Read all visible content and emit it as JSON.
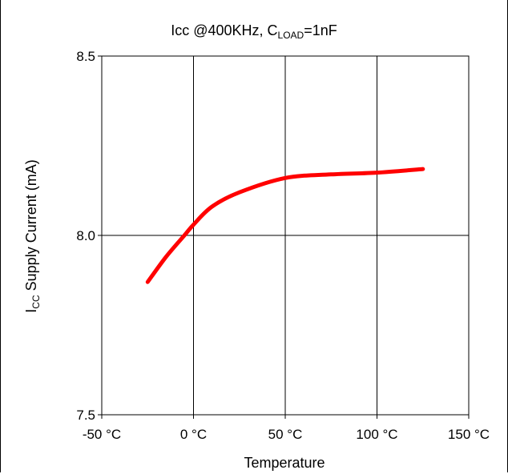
{
  "chart_data": {
    "type": "line",
    "title": {
      "prefix": "Icc @400KHz, C",
      "subscript": "LOAD",
      "suffix": "=1nF"
    },
    "xlabel": "Temperature",
    "ylabel": {
      "prefix": "I",
      "subscript": "CC",
      "suffix": " Supply Current (mA)"
    },
    "xlim": [
      -50,
      150
    ],
    "ylim": [
      7.5,
      8.5
    ],
    "x_ticks": [
      -50,
      0,
      50,
      100,
      150
    ],
    "x_tick_labels": [
      "-50 °C",
      "0 °C",
      "50 °C",
      "100 °C",
      "150 °C"
    ],
    "y_ticks": [
      7.5,
      8.0,
      8.5
    ],
    "y_tick_labels": [
      "7.5",
      "8.0",
      "8.5"
    ],
    "grid": true,
    "series": [
      {
        "color": "#ff0000",
        "x": [
          -25,
          -15,
          -5,
          0,
          10,
          25,
          50,
          75,
          100,
          125
        ],
        "y": [
          7.87,
          7.94,
          8.0,
          8.03,
          8.08,
          8.12,
          8.16,
          8.17,
          8.175,
          8.185
        ]
      }
    ]
  }
}
